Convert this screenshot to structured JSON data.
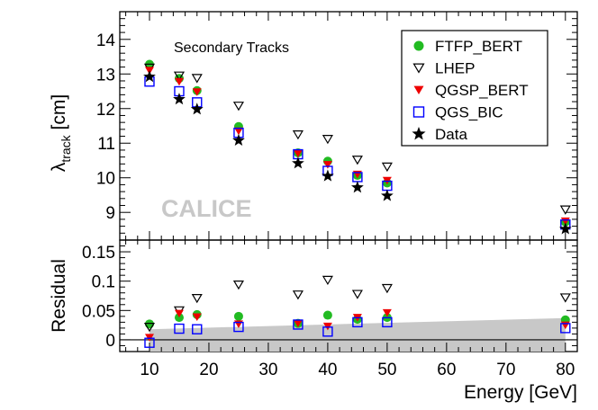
{
  "chart_data": {
    "type": "scatter",
    "xlabel": "Energy [GeV]",
    "x_ticks": [
      10,
      20,
      30,
      40,
      50,
      60,
      70,
      80
    ],
    "xlim": [
      5,
      82
    ],
    "watermark": "CALICE",
    "top_panel": {
      "title": "Secondary Tracks",
      "ylabel_main": "λ",
      "ylabel_sub": "track",
      "ylabel_unit": " [cm]",
      "ylim": [
        8.2,
        14.8
      ],
      "y_ticks": [
        9,
        10,
        11,
        12,
        13,
        14
      ],
      "series": [
        {
          "name": "FTFP_BERT",
          "marker": "circle",
          "color": "#22bb22",
          "x": [
            10,
            15,
            18,
            25,
            35,
            40,
            45,
            50,
            80
          ],
          "y": [
            13.28,
            12.87,
            12.52,
            11.48,
            10.72,
            10.48,
            10.07,
            9.85,
            8.72
          ]
        },
        {
          "name": "LHEP",
          "marker": "triangle-down-open",
          "color": "#000000",
          "x": [
            10,
            15,
            18,
            25,
            35,
            40,
            45,
            50,
            80
          ],
          "y": [
            13.18,
            12.95,
            12.88,
            12.08,
            11.25,
            11.12,
            10.52,
            10.32,
            9.08
          ]
        },
        {
          "name": "QGSP_BERT",
          "marker": "triangle-down",
          "color": "#ee0000",
          "x": [
            10,
            15,
            18,
            25,
            35,
            40,
            45,
            50,
            80
          ],
          "y": [
            13.1,
            12.78,
            12.48,
            11.35,
            10.7,
            10.38,
            10.1,
            9.92,
            8.75
          ]
        },
        {
          "name": "QGS_BIC",
          "marker": "square-open",
          "color": "#0000ff",
          "x": [
            10,
            15,
            18,
            25,
            35,
            40,
            45,
            50,
            80
          ],
          "y": [
            12.78,
            12.5,
            12.18,
            11.3,
            10.68,
            10.2,
            10.02,
            9.77,
            8.65
          ]
        },
        {
          "name": "Data",
          "marker": "star",
          "color": "#000000",
          "x": [
            10,
            15,
            18,
            25,
            35,
            40,
            45,
            50,
            80
          ],
          "y": [
            12.92,
            12.27,
            11.98,
            11.08,
            10.42,
            10.05,
            9.72,
            9.48,
            8.52
          ]
        }
      ]
    },
    "bottom_panel": {
      "ylabel": "Residual",
      "ylim": [
        -0.02,
        0.17
      ],
      "y_ticks": [
        0,
        0.05,
        0.1,
        0.15
      ],
      "y_tick_labels": [
        "0",
        "0.05",
        "0.1",
        "0.15"
      ],
      "band": {
        "x": [
          10,
          80
        ],
        "upper": [
          0.018,
          0.037
        ],
        "lower": [
          -0.02,
          -0.02
        ]
      },
      "series": [
        {
          "name": "FTFP_BERT",
          "marker": "circle",
          "color": "#22bb22",
          "x": [
            10,
            15,
            18,
            25,
            35,
            40,
            45,
            50,
            80
          ],
          "y": [
            0.027,
            0.038,
            0.043,
            0.04,
            0.028,
            0.042,
            0.035,
            0.038,
            0.034
          ]
        },
        {
          "name": "LHEP",
          "marker": "triangle-down-open",
          "color": "#000000",
          "x": [
            10,
            15,
            18,
            25,
            35,
            40,
            45,
            50,
            80
          ],
          "y": [
            0.022,
            0.05,
            0.071,
            0.094,
            0.077,
            0.102,
            0.078,
            0.088,
            0.072
          ]
        },
        {
          "name": "QGSP_BERT",
          "marker": "triangle-down",
          "color": "#ee0000",
          "x": [
            10,
            15,
            18,
            25,
            35,
            40,
            45,
            50,
            80
          ],
          "y": [
            0.004,
            0.045,
            0.039,
            0.027,
            0.028,
            0.023,
            0.038,
            0.046,
            0.025
          ]
        },
        {
          "name": "QGS_BIC",
          "marker": "square-open",
          "color": "#0000ff",
          "x": [
            10,
            15,
            18,
            25,
            35,
            40,
            45,
            50,
            80
          ],
          "y": [
            -0.005,
            0.019,
            0.018,
            0.022,
            0.026,
            0.014,
            0.03,
            0.03,
            0.02
          ]
        }
      ]
    },
    "legend": {
      "position": "top-right",
      "entries": [
        "FTFP_BERT",
        "LHEP",
        "QGSP_BERT",
        "QGS_BIC",
        "Data"
      ]
    }
  }
}
